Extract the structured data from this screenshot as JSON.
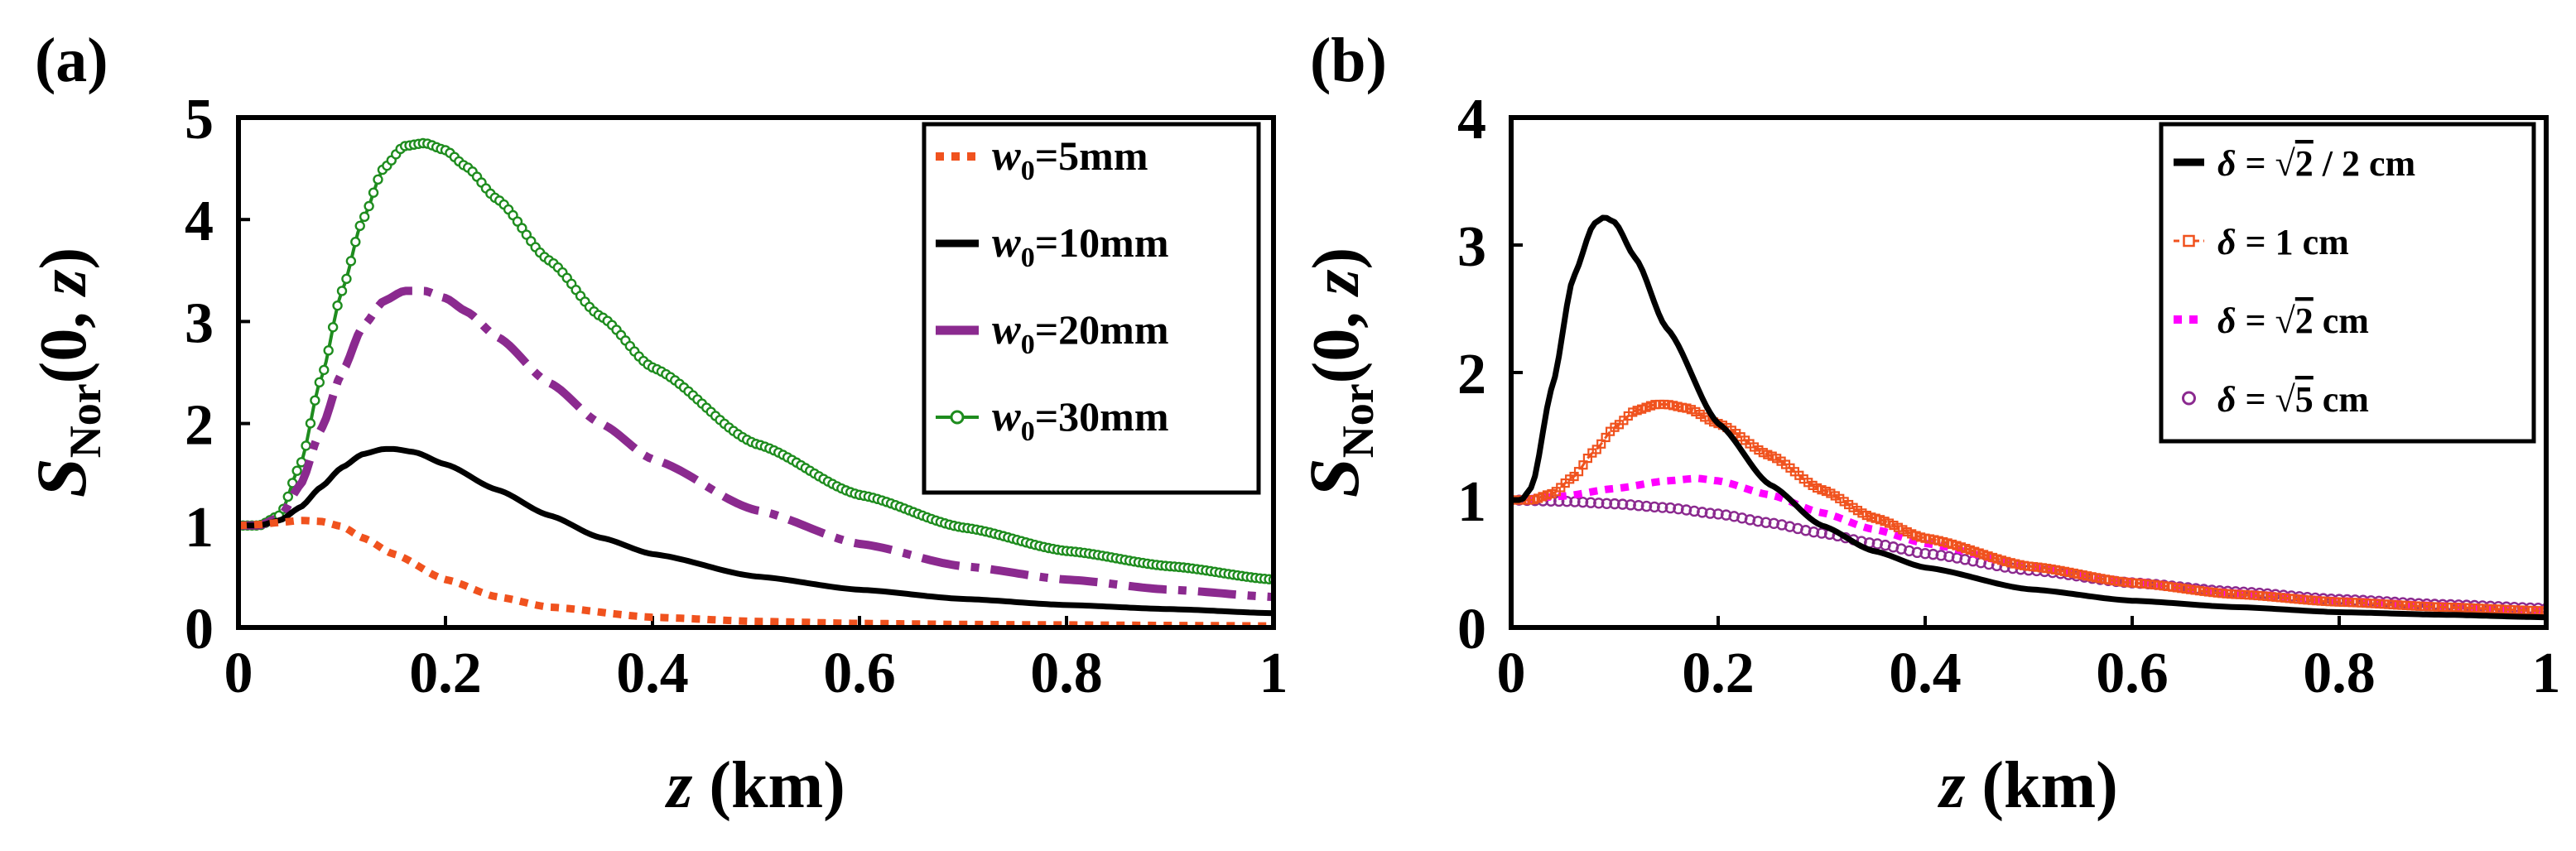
{
  "chart_data": [
    {
      "type": "line",
      "panel_label": "(a)",
      "xlabel_var": "z",
      "xlabel_unit": " (km)",
      "ylabel_main": "S",
      "ylabel_sub": "Nor",
      "ylabel_args": "(0, z)",
      "xlim": [
        0,
        1
      ],
      "ylim": [
        0,
        5
      ],
      "xticks": [
        0,
        0.2,
        0.4,
        0.6,
        0.8,
        1
      ],
      "xtick_labels": [
        "0",
        "0.2",
        "0.4",
        "0.6",
        "0.8",
        "1"
      ],
      "yticks": [
        0,
        1,
        2,
        3,
        4,
        5
      ],
      "ytick_labels": [
        "0",
        "1",
        "2",
        "3",
        "4",
        "5"
      ],
      "legend_position": "top-right",
      "series": [
        {
          "name": "w0=5mm",
          "legend_var": "w",
          "legend_sub": "0",
          "legend_rest": "=5mm",
          "color": "#f0521e",
          "style": "dotted",
          "x": [
            0,
            0.02,
            0.04,
            0.06,
            0.08,
            0.1,
            0.12,
            0.15,
            0.2,
            0.25,
            0.3,
            0.4,
            0.5,
            0.6,
            0.7,
            0.8,
            0.9,
            1.0
          ],
          "y": [
            1.0,
            1.01,
            1.03,
            1.05,
            1.04,
            0.99,
            0.88,
            0.72,
            0.47,
            0.3,
            0.2,
            0.1,
            0.06,
            0.04,
            0.03,
            0.025,
            0.02,
            0.015
          ]
        },
        {
          "name": "w0=10mm",
          "legend_var": "w",
          "legend_sub": "0",
          "legend_rest": "=10mm",
          "color": "#000000",
          "style": "solid",
          "x": [
            0,
            0.02,
            0.04,
            0.06,
            0.08,
            0.1,
            0.12,
            0.14,
            0.15,
            0.17,
            0.2,
            0.25,
            0.3,
            0.35,
            0.4,
            0.5,
            0.6,
            0.7,
            0.8,
            0.9,
            1.0
          ],
          "y": [
            1.0,
            1.0,
            1.05,
            1.18,
            1.38,
            1.57,
            1.7,
            1.75,
            1.75,
            1.72,
            1.6,
            1.35,
            1.1,
            0.88,
            0.72,
            0.5,
            0.37,
            0.28,
            0.22,
            0.18,
            0.14
          ]
        },
        {
          "name": "w0=20mm",
          "legend_var": "w",
          "legend_sub": "0",
          "legend_rest": "=20mm",
          "color": "#8b2a8f",
          "style": "dashdot",
          "x": [
            0,
            0.02,
            0.04,
            0.06,
            0.08,
            0.1,
            0.12,
            0.14,
            0.16,
            0.18,
            0.2,
            0.22,
            0.25,
            0.3,
            0.35,
            0.4,
            0.5,
            0.6,
            0.7,
            0.8,
            0.9,
            1.0
          ],
          "y": [
            1.0,
            1.0,
            1.08,
            1.4,
            1.95,
            2.5,
            2.95,
            3.2,
            3.3,
            3.3,
            3.23,
            3.1,
            2.85,
            2.4,
            2.0,
            1.65,
            1.15,
            0.82,
            0.6,
            0.47,
            0.37,
            0.3
          ]
        },
        {
          "name": "w0=30mm",
          "legend_var": "w",
          "legend_sub": "0",
          "legend_rest": "=30mm",
          "color": "#1e8c1e",
          "style": "solid-circles",
          "x": [
            0,
            0.02,
            0.04,
            0.06,
            0.08,
            0.1,
            0.12,
            0.14,
            0.16,
            0.18,
            0.2,
            0.22,
            0.25,
            0.3,
            0.35,
            0.4,
            0.5,
            0.6,
            0.7,
            0.8,
            0.9,
            1.0
          ],
          "y": [
            1.0,
            1.0,
            1.1,
            1.6,
            2.45,
            3.3,
            4.0,
            4.5,
            4.72,
            4.75,
            4.68,
            4.52,
            4.2,
            3.6,
            3.05,
            2.55,
            1.8,
            1.3,
            0.98,
            0.75,
            0.6,
            0.47
          ]
        }
      ]
    },
    {
      "type": "line",
      "panel_label": "(b)",
      "xlabel_var": "z",
      "xlabel_unit": " (km)",
      "ylabel_main": "S",
      "ylabel_sub": "Nor",
      "ylabel_args": "(0, z)",
      "xlim": [
        0,
        1
      ],
      "ylim": [
        0,
        4
      ],
      "xticks": [
        0,
        0.2,
        0.4,
        0.6,
        0.8,
        1
      ],
      "xtick_labels": [
        "0",
        "0.2",
        "0.4",
        "0.6",
        "0.8",
        "1"
      ],
      "yticks": [
        0,
        1,
        2,
        3,
        4
      ],
      "ytick_labels": [
        "0",
        "1",
        "2",
        "3",
        "4"
      ],
      "legend_position": "top-right",
      "series": [
        {
          "name": "δ = √2 / 2 cm",
          "legend_pre": "δ = ",
          "legend_root": "2",
          "legend_post": " / 2 cm",
          "color": "#000000",
          "style": "solid",
          "x": [
            0,
            0.01,
            0.02,
            0.04,
            0.06,
            0.08,
            0.09,
            0.1,
            0.12,
            0.15,
            0.2,
            0.25,
            0.3,
            0.35,
            0.4,
            0.5,
            0.6,
            0.7,
            0.8,
            0.9,
            1.0
          ],
          "y": [
            1.0,
            1.0,
            1.1,
            1.9,
            2.75,
            3.17,
            3.22,
            3.18,
            2.9,
            2.35,
            1.6,
            1.12,
            0.8,
            0.6,
            0.47,
            0.3,
            0.21,
            0.16,
            0.12,
            0.1,
            0.08
          ]
        },
        {
          "name": "δ = 1 cm",
          "legend_pre": "δ = 1 cm",
          "legend_root": "",
          "legend_post": "",
          "color": "#f0521e",
          "style": "dashed-squares",
          "x": [
            0,
            0.02,
            0.04,
            0.06,
            0.08,
            0.1,
            0.12,
            0.14,
            0.15,
            0.17,
            0.2,
            0.25,
            0.3,
            0.35,
            0.4,
            0.5,
            0.6,
            0.7,
            0.8,
            0.9,
            1.0
          ],
          "y": [
            1.0,
            1.0,
            1.05,
            1.18,
            1.38,
            1.57,
            1.7,
            1.75,
            1.75,
            1.72,
            1.6,
            1.35,
            1.08,
            0.86,
            0.7,
            0.48,
            0.35,
            0.26,
            0.2,
            0.16,
            0.13
          ]
        },
        {
          "name": "δ = √2 cm",
          "legend_pre": "δ = ",
          "legend_root": "2",
          "legend_post": " cm",
          "color": "#ff00ff",
          "style": "dotted",
          "x": [
            0,
            0.05,
            0.1,
            0.15,
            0.18,
            0.2,
            0.25,
            0.3,
            0.35,
            0.4,
            0.5,
            0.6,
            0.7,
            0.8,
            0.9,
            1.0
          ],
          "y": [
            1.0,
            1.03,
            1.09,
            1.15,
            1.17,
            1.15,
            1.04,
            0.9,
            0.77,
            0.66,
            0.48,
            0.36,
            0.27,
            0.21,
            0.17,
            0.13
          ]
        },
        {
          "name": "δ = √5 cm",
          "legend_pre": "δ = ",
          "legend_root": "5",
          "legend_post": " cm",
          "color": "#8b2a8f",
          "style": "circles",
          "x": [
            0,
            0.05,
            0.1,
            0.15,
            0.2,
            0.25,
            0.3,
            0.35,
            0.4,
            0.5,
            0.6,
            0.7,
            0.8,
            0.9,
            1.0
          ],
          "y": [
            1.0,
            0.99,
            0.97,
            0.94,
            0.89,
            0.82,
            0.74,
            0.66,
            0.58,
            0.45,
            0.35,
            0.28,
            0.22,
            0.18,
            0.15
          ]
        }
      ]
    }
  ]
}
